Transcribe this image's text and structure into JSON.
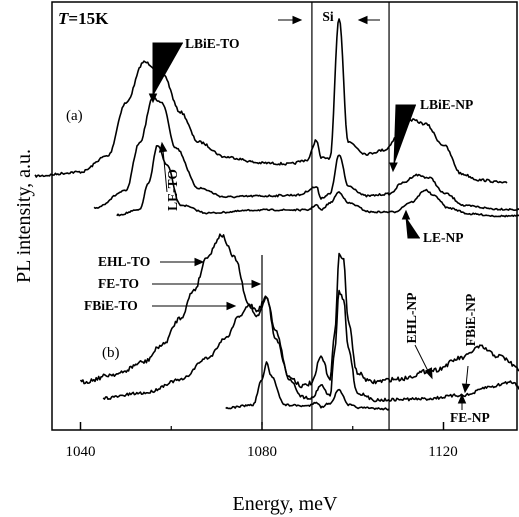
{
  "chart_data": {
    "type": "line",
    "temperature": {
      "symbol": "T",
      "value": "=15K"
    },
    "xlabel": "Energy, meV",
    "ylabel": "PL intensity, a.u.",
    "xlim": [
      1030,
      1145
    ],
    "xticks": [
      "1040",
      "1080",
      "1120"
    ],
    "xtick_values": [
      1040,
      1080,
      1120
    ],
    "panels": {
      "a": "(a)",
      "b": "(b)"
    },
    "vertical_lines_meV": [
      1080,
      1091,
      1108
    ],
    "peak_labels": {
      "si": "Si",
      "lbie_to": "LBiE-TO",
      "lbie_np": "LBiE-NP",
      "le_to": "LE-TO",
      "le_np": "LE-NP",
      "ehl_to": "EHL-TO",
      "fe_to": "FE-TO",
      "fbie_to": "FBiE-TO",
      "ehl_np": "EHL-NP",
      "fbie_np": "FBiE-NP",
      "fe_np": "FE-NP"
    },
    "series": [
      {
        "panel": "a",
        "noise": 1.2,
        "points": [
          [
            1030,
            176
          ],
          [
            1040,
            172
          ],
          [
            1046,
            156
          ],
          [
            1050,
            103
          ],
          [
            1054,
            62
          ],
          [
            1058,
            73
          ],
          [
            1062,
            112
          ],
          [
            1066,
            142
          ],
          [
            1072,
            157
          ],
          [
            1080,
            163
          ],
          [
            1086,
            164
          ],
          [
            1090,
            160
          ],
          [
            1092,
            140
          ],
          [
            1093,
            158
          ],
          [
            1095,
            158
          ],
          [
            1097,
            18
          ],
          [
            1099,
            142
          ],
          [
            1103,
            154
          ],
          [
            1107,
            150
          ],
          [
            1110,
            136
          ],
          [
            1113,
            120
          ],
          [
            1116,
            124
          ],
          [
            1120,
            145
          ],
          [
            1124,
            174
          ],
          [
            1128,
            180
          ],
          [
            1134,
            183
          ]
        ]
      },
      {
        "panel": "a",
        "noise": 1.0,
        "points": [
          [
            1043,
            208
          ],
          [
            1050,
            191
          ],
          [
            1053,
            143
          ],
          [
            1056,
            98
          ],
          [
            1058,
            103
          ],
          [
            1061,
            148
          ],
          [
            1066,
            188
          ],
          [
            1072,
            197
          ],
          [
            1080,
            196
          ],
          [
            1088,
            195
          ],
          [
            1092,
            187
          ],
          [
            1093,
            198
          ],
          [
            1095,
            194
          ],
          [
            1097,
            155
          ],
          [
            1099,
            186
          ],
          [
            1103,
            196
          ],
          [
            1108,
            194
          ],
          [
            1111,
            183
          ],
          [
            1114,
            175
          ],
          [
            1117,
            178
          ],
          [
            1120,
            193
          ],
          [
            1125,
            206
          ],
          [
            1132,
            209
          ],
          [
            1138,
            210
          ]
        ]
      },
      {
        "panel": "a",
        "noise": 0.8,
        "points": [
          [
            1048,
            215
          ],
          [
            1053,
            210
          ],
          [
            1055,
            183
          ],
          [
            1057,
            145
          ],
          [
            1059,
            165
          ],
          [
            1062,
            205
          ],
          [
            1068,
            213
          ],
          [
            1080,
            210
          ],
          [
            1090,
            210
          ],
          [
            1092,
            205
          ],
          [
            1093,
            210
          ],
          [
            1095,
            203
          ],
          [
            1097,
            192
          ],
          [
            1099,
            203
          ],
          [
            1104,
            212
          ],
          [
            1109,
            212
          ],
          [
            1113,
            202
          ],
          [
            1116,
            190
          ],
          [
            1118,
            196
          ],
          [
            1121,
            208
          ],
          [
            1126,
            214
          ],
          [
            1132,
            216
          ],
          [
            1138,
            216
          ]
        ]
      },
      {
        "panel": "b",
        "noise": 2.2,
        "points": [
          [
            1040,
            382
          ],
          [
            1048,
            374
          ],
          [
            1054,
            362
          ],
          [
            1058,
            345
          ],
          [
            1062,
            318
          ],
          [
            1065,
            290
          ],
          [
            1068,
            256
          ],
          [
            1071,
            235
          ],
          [
            1074,
            258
          ],
          [
            1077,
            304
          ],
          [
            1079,
            310
          ],
          [
            1081,
            297
          ],
          [
            1083,
            338
          ],
          [
            1086,
            377
          ],
          [
            1089,
            386
          ],
          [
            1091,
            383
          ],
          [
            1093,
            357
          ],
          [
            1095,
            378
          ],
          [
            1096,
            335
          ],
          [
            1097,
            255
          ],
          [
            1098,
            260
          ],
          [
            1099,
            322
          ],
          [
            1101,
            373
          ],
          [
            1104,
            382
          ],
          [
            1110,
            379
          ],
          [
            1118,
            370
          ],
          [
            1124,
            358
          ],
          [
            1128,
            347
          ],
          [
            1132,
            356
          ],
          [
            1138,
            372
          ],
          [
            1145,
            387
          ]
        ]
      },
      {
        "panel": "b",
        "noise": 1.5,
        "points": [
          [
            1045,
            398
          ],
          [
            1054,
            393
          ],
          [
            1062,
            380
          ],
          [
            1068,
            358
          ],
          [
            1072,
            338
          ],
          [
            1075,
            316
          ],
          [
            1077,
            306
          ],
          [
            1079,
            316
          ],
          [
            1081,
            297
          ],
          [
            1083,
            331
          ],
          [
            1086,
            379
          ],
          [
            1089,
            397
          ],
          [
            1091,
            398
          ],
          [
            1093,
            385
          ],
          [
            1095,
            396
          ],
          [
            1096,
            352
          ],
          [
            1097,
            292
          ],
          [
            1098,
            300
          ],
          [
            1099,
            348
          ],
          [
            1101,
            393
          ],
          [
            1105,
            400
          ],
          [
            1115,
            399
          ],
          [
            1125,
            395
          ],
          [
            1130,
            387
          ],
          [
            1135,
            382
          ],
          [
            1138,
            392
          ],
          [
            1145,
            398
          ]
        ]
      },
      {
        "panel": "b",
        "noise": 1.0,
        "points": [
          [
            1072,
            408
          ],
          [
            1078,
            405
          ],
          [
            1080,
            380
          ],
          [
            1081,
            363
          ],
          [
            1082,
            376
          ],
          [
            1085,
            405
          ],
          [
            1090,
            406
          ],
          [
            1092,
            402
          ],
          [
            1093,
            407
          ],
          [
            1095,
            403
          ],
          [
            1097,
            390
          ],
          [
            1099,
            405
          ],
          [
            1102,
            408
          ],
          [
            1108,
            409
          ]
        ]
      }
    ]
  }
}
